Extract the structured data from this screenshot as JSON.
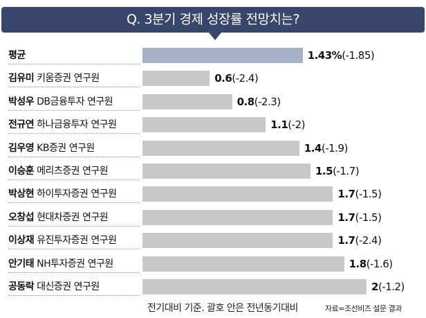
{
  "chart_data": {
    "type": "bar",
    "orientation": "horizontal",
    "title": "Q. 3분기 경제 성장률 전망치는?",
    "unit": "%",
    "xlim": [
      0,
      2
    ],
    "categories": [
      {
        "name": "평균",
        "affiliation": ""
      },
      {
        "name": "김유미",
        "affiliation": "키움증권 연구원"
      },
      {
        "name": "박성우",
        "affiliation": "DB금융투자 연구원"
      },
      {
        "name": "전규연",
        "affiliation": "하나금융투자 연구원"
      },
      {
        "name": "김우영",
        "affiliation": "KB증권 연구원"
      },
      {
        "name": "이승훈",
        "affiliation": "메리츠증권 연구원"
      },
      {
        "name": "박상현",
        "affiliation": "하이투자증권 연구원"
      },
      {
        "name": "오창섭",
        "affiliation": "현대차증권 연구원"
      },
      {
        "name": "이상재",
        "affiliation": "유진투자증권 연구원"
      },
      {
        "name": "안기태",
        "affiliation": "NH투자증권 연구원"
      },
      {
        "name": "공동락",
        "affiliation": "대신증권 연구원"
      }
    ],
    "series": [
      {
        "name": "전기대비",
        "values": [
          1.43,
          0.6,
          0.8,
          1.1,
          1.4,
          1.5,
          1.7,
          1.7,
          1.7,
          1.8,
          2
        ],
        "labels": [
          "1.43%",
          "0.6",
          "0.8",
          "1.1",
          "1.4",
          "1.5",
          "1.7",
          "1.7",
          "1.7",
          "1.8",
          "2"
        ]
      },
      {
        "name": "전년동기대비",
        "values": [
          -1.85,
          -2.4,
          -2.3,
          -2,
          -1.9,
          -1.7,
          -1.5,
          -1.5,
          -2.4,
          -1.6,
          -1.2
        ],
        "labels": [
          "(-1.85)",
          "(-2.4)",
          "(-2.3)",
          "(-2)",
          "(-1.9)",
          "(-1.7)",
          "(-1.5)",
          "(-1.5)",
          "(-2.4)",
          "(-1.6)",
          "(-1.2)"
        ]
      }
    ],
    "colors": {
      "average": "#a6b0c6",
      "bar": "#c8c8c8",
      "header": "#37466a"
    },
    "note": "전기대비 기준. 괄호 안은 전년동기대비",
    "source": "자료=조선비즈 설문 결과"
  }
}
